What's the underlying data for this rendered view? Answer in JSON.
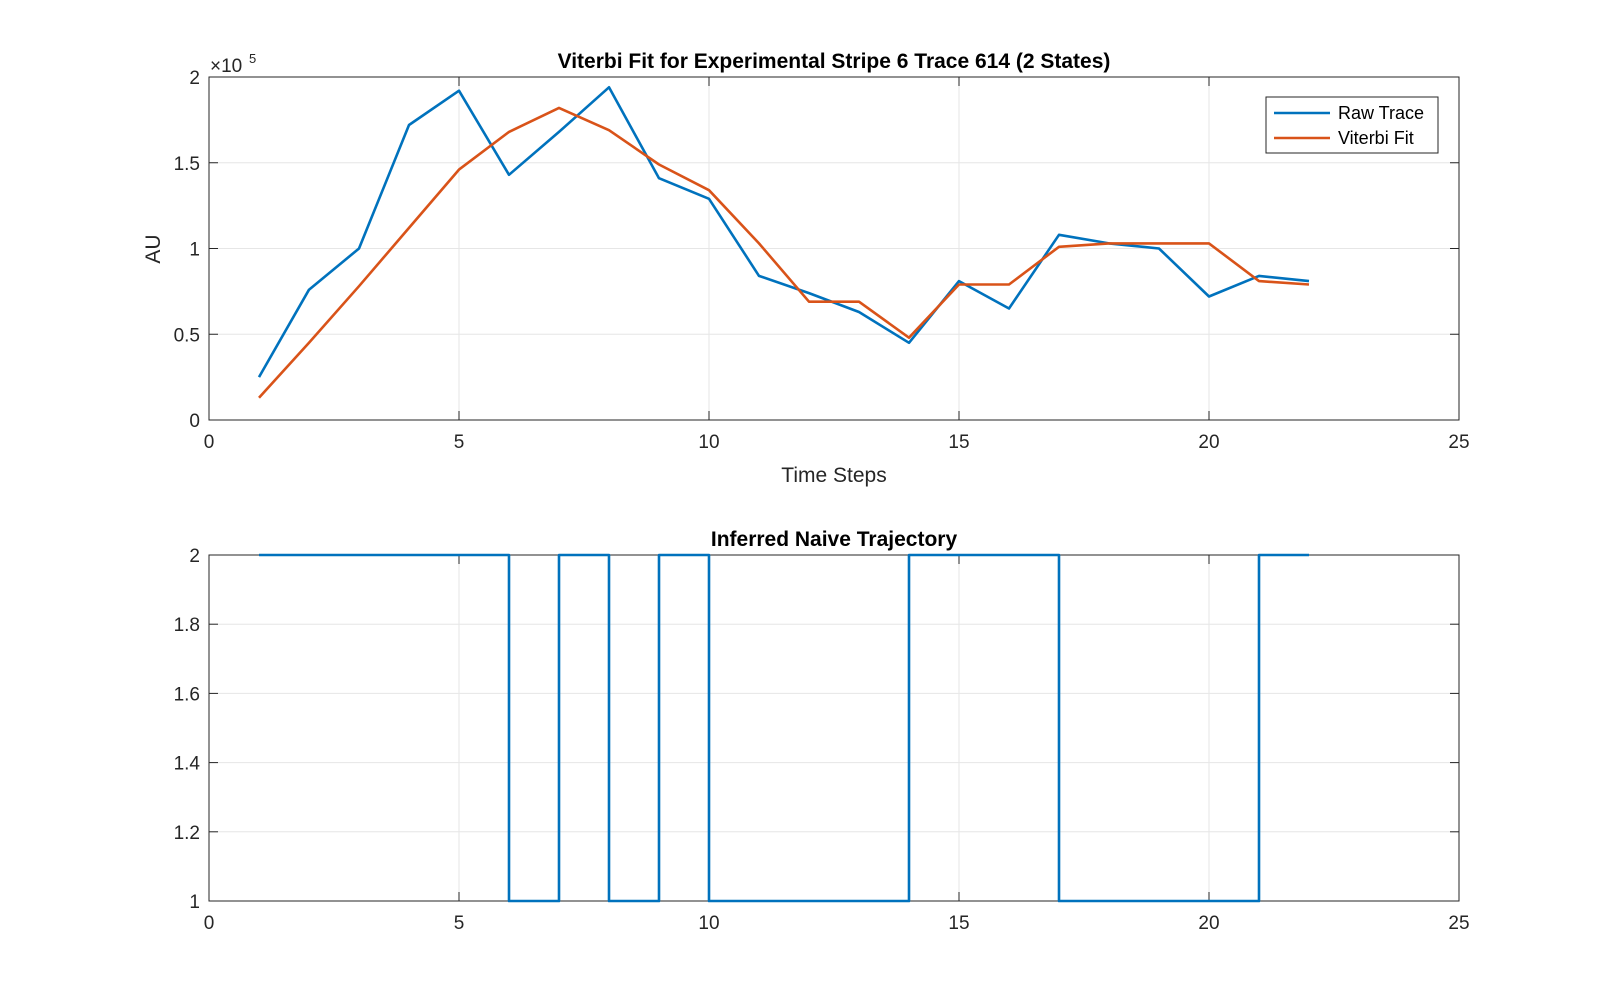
{
  "chart_data": [
    {
      "type": "line",
      "title": "Viterbi Fit for Experimental Stripe 6 Trace 614 (2 States)",
      "xlabel": "Time Steps",
      "ylabel": "AU",
      "y_exponent_label": "×10",
      "y_exponent": "5",
      "xlim": [
        0,
        25
      ],
      "ylim": [
        0,
        2
      ],
      "xticks": [
        0,
        5,
        10,
        15,
        20,
        25
      ],
      "xtick_labels": [
        "0",
        "5",
        "10",
        "15",
        "20",
        "25"
      ],
      "yticks": [
        0,
        0.5,
        1,
        1.5,
        2
      ],
      "ytick_labels": [
        "0",
        "0.5",
        "1",
        "1.5",
        "2"
      ],
      "grid": true,
      "legend_position": "top-right",
      "x": [
        1,
        2,
        3,
        4,
        5,
        6,
        7,
        8,
        9,
        10,
        11,
        12,
        13,
        14,
        15,
        16,
        17,
        18,
        19,
        20,
        21,
        22
      ],
      "series": [
        {
          "name": "Raw Trace",
          "color": "#0072BD",
          "values": [
            0.25,
            0.76,
            1.0,
            1.72,
            1.92,
            1.43,
            1.68,
            1.94,
            1.41,
            1.29,
            0.84,
            0.74,
            0.63,
            0.45,
            0.81,
            0.65,
            1.08,
            1.03,
            1.0,
            0.72,
            0.84,
            0.81
          ]
        },
        {
          "name": "Viterbi Fit",
          "color": "#D95319",
          "values": [
            0.13,
            0.45,
            0.78,
            1.12,
            1.46,
            1.68,
            1.82,
            1.69,
            1.49,
            1.34,
            1.03,
            0.69,
            0.69,
            0.48,
            0.79,
            0.79,
            1.01,
            1.03,
            1.03,
            1.03,
            0.81,
            0.79
          ]
        }
      ]
    },
    {
      "type": "line",
      "title": "Inferred Naive Trajectory",
      "xlim": [
        0,
        25
      ],
      "ylim": [
        1,
        2
      ],
      "xticks": [
        0,
        5,
        10,
        15,
        20,
        25
      ],
      "xtick_labels": [
        "0",
        "5",
        "10",
        "15",
        "20",
        "25"
      ],
      "yticks": [
        1,
        1.2,
        1.4,
        1.6,
        1.8,
        2
      ],
      "ytick_labels": [
        "1",
        "1.2",
        "1.4",
        "1.6",
        "1.8",
        "2"
      ],
      "grid": true,
      "step": true,
      "x": [
        1,
        2,
        3,
        4,
        5,
        6,
        7,
        8,
        9,
        10,
        11,
        12,
        13,
        14,
        15,
        16,
        17,
        18,
        19,
        20,
        21,
        22
      ],
      "series": [
        {
          "color": "#0072BD",
          "values": [
            2,
            2,
            2,
            2,
            2,
            1,
            2,
            1,
            2,
            1,
            1,
            1,
            1,
            2,
            2,
            2,
            1,
            1,
            1,
            1,
            2,
            2
          ]
        }
      ]
    }
  ]
}
